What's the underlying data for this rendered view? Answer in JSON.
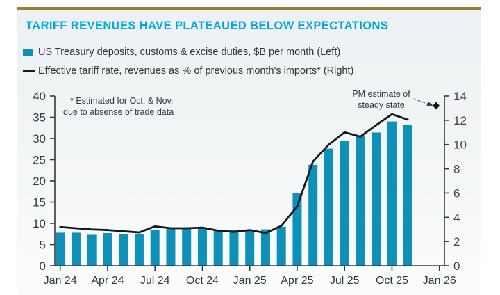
{
  "page": {
    "title": "TARIFF REVENUES HAVE PLATEAUED BELOW EXPECTATIONS",
    "accent_color": "#00A8DB",
    "top_rule_color": "#91832A",
    "text_color": "#2d3338"
  },
  "legend": [
    {
      "swatch": "bar",
      "color": "#0E90B8",
      "label": "US Treasury deposits, customs & excise duties, $B per month (Left)"
    },
    {
      "swatch": "line",
      "color": "#15181B",
      "label": "Effective tariff rate, revenues as % of previous month's imports* (Right)"
    }
  ],
  "annotations": {
    "estimate_note_line1": "* Estimated for Oct. & Nov.",
    "estimate_note_line2": "due to absense of trade data",
    "pm_note_line1": "PM estimate of",
    "pm_note_line2": "steady state",
    "arrow_color": "#4f74a0",
    "marker_color": "#0e1217"
  },
  "chart_data": {
    "type": "bar+line dual-axis, monthly time series",
    "categories": [
      "Jan 24",
      "Feb 24",
      "Mar 24",
      "Apr 24",
      "May 24",
      "Jun 24",
      "Jul 24",
      "Aug 24",
      "Sep 24",
      "Oct 24",
      "Nov 24",
      "Dec 24",
      "Jan 25",
      "Feb 25",
      "Mar 25",
      "Apr 25",
      "May 25",
      "Jun 25",
      "Jul 25",
      "Aug 25",
      "Sep 25",
      "Oct 25",
      "Nov 25"
    ],
    "series": [
      {
        "name": "US Treasury deposits, customs & excise duties, $B per month",
        "axis": "left",
        "type": "bar",
        "color": "#0E90B8",
        "values": [
          7.8,
          7.8,
          7.3,
          7.7,
          7.5,
          7.4,
          8.5,
          8.7,
          8.9,
          8.8,
          8.3,
          8.4,
          8.3,
          8.6,
          9.2,
          17.2,
          23.8,
          27.6,
          29.4,
          30.7,
          31.4,
          34.0,
          33.2
        ]
      },
      {
        "name": "Effective tariff rate, revenues as % of previous month's imports",
        "axis": "right",
        "type": "line",
        "color": "#15181B",
        "values": [
          3.2,
          3.1,
          3.0,
          2.95,
          2.85,
          2.75,
          3.25,
          3.1,
          3.1,
          3.15,
          2.9,
          2.8,
          2.95,
          2.7,
          3.3,
          4.9,
          8.6,
          10.0,
          11.0,
          10.65,
          11.6,
          12.5,
          12.05
        ]
      }
    ],
    "pm_estimate_point": {
      "value_right_axis": 13.2,
      "x_month_index": 23.8,
      "note": "diamond marker between Dec 25 and Jan 26"
    },
    "left_axis": {
      "min": 0,
      "max": 40,
      "step": 5,
      "tick_labels": [
        "0",
        "5",
        "10",
        "15",
        "20",
        "25",
        "30",
        "35",
        "40"
      ]
    },
    "right_axis": {
      "min": 0,
      "max": 14,
      "step": 2,
      "tick_labels": [
        "0",
        "2",
        "4",
        "6",
        "8",
        "10",
        "12",
        "14"
      ]
    },
    "x_tick_labels": [
      "Jan 24",
      "Apr 24",
      "Jul 24",
      "Oct 24",
      "Jan 25",
      "Apr 25",
      "Jul 25",
      "Oct 25",
      "Jan 26"
    ],
    "x_tick_every_n_months": 3,
    "grid": false,
    "legend_position": "top-left"
  }
}
